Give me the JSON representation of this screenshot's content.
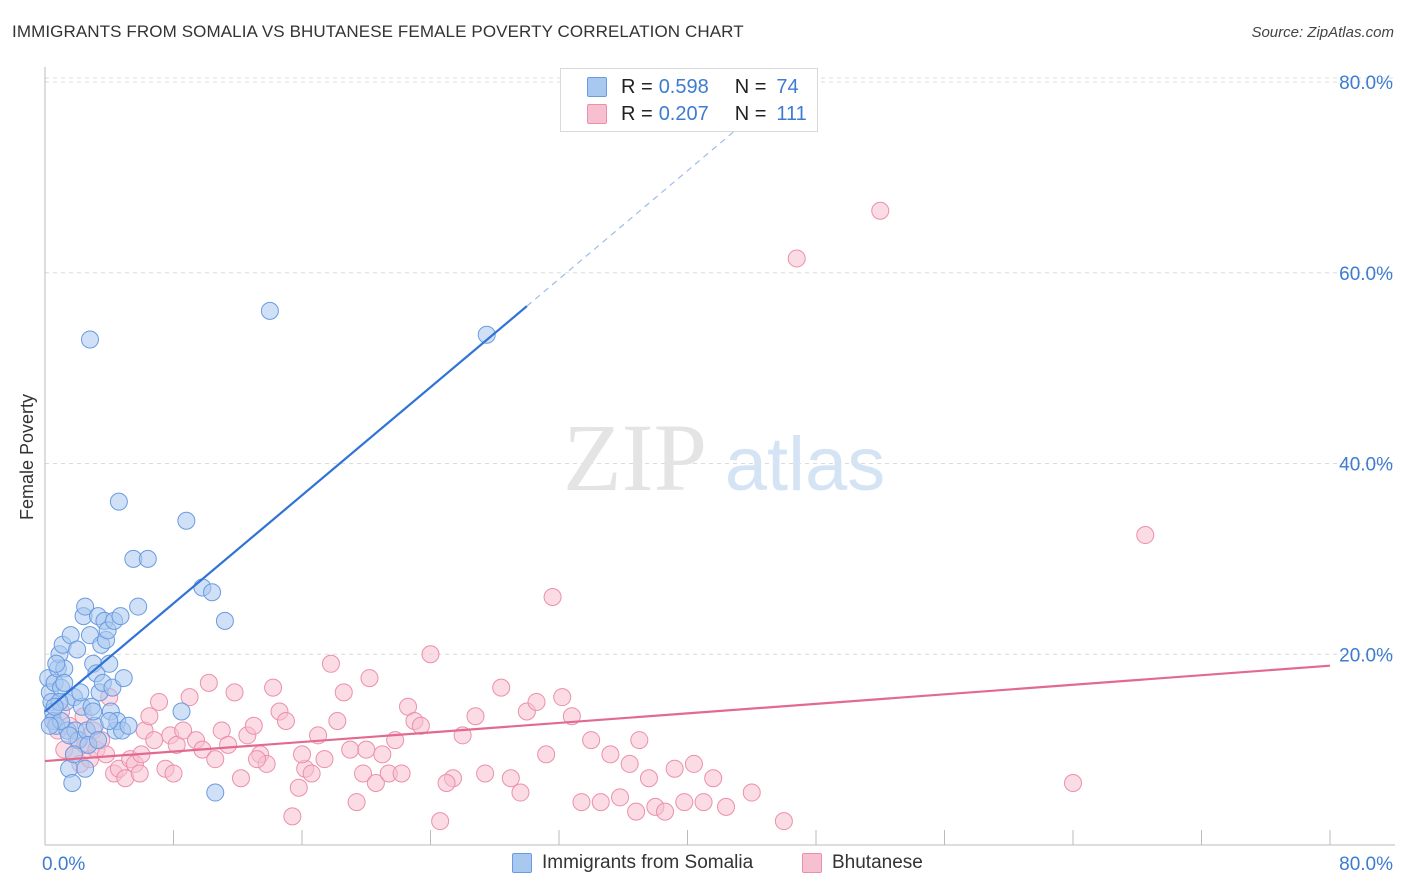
{
  "header": {
    "title": "IMMIGRANTS FROM SOMALIA VS BHUTANESE FEMALE POVERTY CORRELATION CHART",
    "source": "Source: ZipAtlas.com"
  },
  "watermark": {
    "zip": "ZIP",
    "atlas": "atlas"
  },
  "legend": {
    "rows": [
      {
        "r_label": "R =",
        "r_value": "0.598",
        "n_label": "N =",
        "n_value": "74",
        "color": "#a9c8f0",
        "border": "#6a9be0"
      },
      {
        "r_label": "R =",
        "r_value": "0.207",
        "n_label": "N =",
        "n_value": "111",
        "color": "#f7c0d0",
        "border": "#ec8fab"
      }
    ]
  },
  "bottom_legend": [
    {
      "label": "Immigrants from Somalia",
      "color": "#a9c8f0",
      "border": "#6a9be0"
    },
    {
      "label": "Bhutanese",
      "color": "#f7c0d0",
      "border": "#ec8fab"
    }
  ],
  "chart_data": {
    "type": "scatter",
    "title": "IMMIGRANTS FROM SOMALIA VS BHUTANESE FEMALE POVERTY CORRELATION CHART",
    "xlabel": "",
    "ylabel": "Female Poverty",
    "xlim": [
      0,
      80
    ],
    "ylim": [
      0,
      80
    ],
    "x_tick_labels": [
      "0.0%",
      "80.0%"
    ],
    "y_tick_labels": [
      "20.0%",
      "40.0%",
      "60.0%",
      "80.0%"
    ],
    "y_ticks": [
      20,
      40,
      60,
      80
    ],
    "grid": true,
    "series": [
      {
        "name": "Immigrants from Somalia",
        "color": "#a9c8f0",
        "stroke": "#6a9be0",
        "line_color": "#2f73d6",
        "trend": {
          "x0": 0,
          "y0": 14.0,
          "x1": 30,
          "y1": 56.5,
          "dash_to_x": 45,
          "dash_to_y": 77.8
        },
        "points": [
          [
            0.2,
            17.5
          ],
          [
            0.3,
            16.0
          ],
          [
            0.4,
            15.0
          ],
          [
            0.5,
            14.0
          ],
          [
            0.5,
            13.0
          ],
          [
            0.6,
            17.0
          ],
          [
            0.7,
            12.5
          ],
          [
            0.8,
            18.5
          ],
          [
            0.9,
            20.0
          ],
          [
            1.0,
            16.5
          ],
          [
            1.1,
            21.0
          ],
          [
            1.2,
            18.5
          ],
          [
            1.3,
            15.0
          ],
          [
            1.4,
            12.0
          ],
          [
            1.5,
            8.0
          ],
          [
            1.6,
            22.0
          ],
          [
            1.7,
            6.5
          ],
          [
            1.8,
            15.5
          ],
          [
            1.9,
            12.0
          ],
          [
            2.0,
            20.5
          ],
          [
            2.1,
            11.0
          ],
          [
            2.3,
            14.5
          ],
          [
            2.4,
            24.0
          ],
          [
            2.5,
            25.0
          ],
          [
            2.6,
            12.0
          ],
          [
            2.7,
            10.5
          ],
          [
            2.8,
            22.0
          ],
          [
            2.9,
            14.5
          ],
          [
            3.0,
            19.0
          ],
          [
            3.1,
            12.5
          ],
          [
            3.2,
            18.0
          ],
          [
            3.3,
            24.0
          ],
          [
            3.4,
            16.0
          ],
          [
            3.5,
            21.0
          ],
          [
            3.6,
            17.0
          ],
          [
            3.7,
            23.5
          ],
          [
            3.8,
            21.5
          ],
          [
            3.9,
            22.5
          ],
          [
            4.0,
            19.0
          ],
          [
            4.1,
            14.0
          ],
          [
            4.2,
            16.5
          ],
          [
            4.3,
            23.5
          ],
          [
            4.4,
            12.0
          ],
          [
            4.5,
            13.0
          ],
          [
            4.6,
            36.0
          ],
          [
            4.7,
            24.0
          ],
          [
            4.8,
            12.0
          ],
          [
            4.9,
            17.5
          ],
          [
            5.2,
            12.5
          ],
          [
            5.5,
            30.0
          ],
          [
            5.8,
            25.0
          ],
          [
            6.4,
            30.0
          ],
          [
            2.8,
            53.0
          ],
          [
            8.5,
            14.0
          ],
          [
            8.8,
            34.0
          ],
          [
            9.8,
            27.0
          ],
          [
            10.4,
            26.5
          ],
          [
            11.2,
            23.5
          ],
          [
            14.0,
            56.0
          ],
          [
            27.5,
            53.5
          ],
          [
            10.6,
            5.5
          ],
          [
            1.0,
            13.0
          ],
          [
            0.9,
            15.0
          ],
          [
            1.5,
            11.5
          ],
          [
            2.2,
            16.0
          ],
          [
            0.6,
            14.5
          ],
          [
            0.3,
            12.5
          ],
          [
            1.2,
            17.0
          ],
          [
            3.0,
            14.0
          ],
          [
            4.0,
            13.0
          ],
          [
            1.8,
            9.5
          ],
          [
            2.5,
            8.0
          ],
          [
            0.7,
            19.0
          ],
          [
            3.3,
            11.0
          ]
        ]
      },
      {
        "name": "Bhutanese",
        "color": "#f7c0d0",
        "stroke": "#ec8fab",
        "line_color": "#e26a92",
        "trend": {
          "x0": 0,
          "y0": 8.8,
          "x1": 80,
          "y1": 18.8
        },
        "points": [
          [
            0.5,
            13.0
          ],
          [
            0.8,
            12.0
          ],
          [
            1.0,
            14.0
          ],
          [
            1.2,
            10.0
          ],
          [
            1.5,
            12.5
          ],
          [
            1.8,
            9.5
          ],
          [
            2.0,
            11.0
          ],
          [
            2.2,
            8.5
          ],
          [
            2.5,
            10.5
          ],
          [
            2.8,
            9.0
          ],
          [
            3.0,
            12.0
          ],
          [
            3.2,
            10.0
          ],
          [
            3.5,
            11.0
          ],
          [
            3.8,
            9.5
          ],
          [
            4.0,
            15.5
          ],
          [
            4.3,
            7.5
          ],
          [
            4.6,
            8.0
          ],
          [
            5.0,
            7.0
          ],
          [
            5.3,
            9.0
          ],
          [
            5.6,
            8.5
          ],
          [
            5.9,
            7.5
          ],
          [
            6.2,
            12.0
          ],
          [
            6.5,
            13.5
          ],
          [
            6.8,
            11.0
          ],
          [
            7.1,
            15.0
          ],
          [
            7.5,
            8.0
          ],
          [
            7.8,
            11.5
          ],
          [
            8.2,
            10.5
          ],
          [
            8.6,
            12.0
          ],
          [
            9.0,
            15.5
          ],
          [
            9.4,
            11.0
          ],
          [
            9.8,
            10.0
          ],
          [
            10.2,
            17.0
          ],
          [
            10.6,
            9.0
          ],
          [
            11.0,
            12.0
          ],
          [
            11.4,
            10.5
          ],
          [
            11.8,
            16.0
          ],
          [
            12.2,
            7.0
          ],
          [
            12.6,
            11.5
          ],
          [
            13.0,
            12.5
          ],
          [
            13.4,
            9.5
          ],
          [
            13.8,
            8.5
          ],
          [
            14.2,
            16.5
          ],
          [
            14.6,
            14.0
          ],
          [
            15.0,
            13.0
          ],
          [
            15.4,
            3.0
          ],
          [
            15.8,
            6.0
          ],
          [
            16.2,
            8.0
          ],
          [
            16.6,
            7.5
          ],
          [
            17.0,
            11.5
          ],
          [
            17.4,
            9.0
          ],
          [
            17.8,
            19.0
          ],
          [
            18.2,
            13.0
          ],
          [
            18.6,
            16.0
          ],
          [
            19.0,
            10.0
          ],
          [
            19.4,
            4.5
          ],
          [
            19.8,
            7.5
          ],
          [
            20.2,
            17.5
          ],
          [
            20.6,
            6.5
          ],
          [
            21.0,
            9.5
          ],
          [
            21.4,
            7.5
          ],
          [
            21.8,
            11.0
          ],
          [
            22.2,
            7.5
          ],
          [
            22.6,
            14.5
          ],
          [
            23.0,
            13.0
          ],
          [
            23.4,
            12.5
          ],
          [
            24.0,
            20.0
          ],
          [
            24.6,
            2.5
          ],
          [
            25.4,
            7.0
          ],
          [
            26.0,
            11.5
          ],
          [
            26.8,
            13.5
          ],
          [
            27.4,
            7.5
          ],
          [
            28.4,
            16.5
          ],
          [
            29.0,
            7.0
          ],
          [
            30.0,
            14.0
          ],
          [
            30.6,
            15.0
          ],
          [
            31.2,
            9.5
          ],
          [
            31.6,
            26.0
          ],
          [
            32.2,
            15.5
          ],
          [
            32.8,
            13.5
          ],
          [
            33.4,
            4.5
          ],
          [
            34.0,
            11.0
          ],
          [
            34.6,
            4.5
          ],
          [
            35.2,
            9.5
          ],
          [
            35.8,
            5.0
          ],
          [
            36.4,
            8.5
          ],
          [
            37.0,
            11.0
          ],
          [
            37.6,
            7.0
          ],
          [
            38.0,
            4.0
          ],
          [
            38.6,
            3.5
          ],
          [
            39.2,
            8.0
          ],
          [
            39.8,
            4.5
          ],
          [
            40.4,
            8.5
          ],
          [
            41.0,
            4.5
          ],
          [
            41.6,
            7.0
          ],
          [
            42.4,
            4.0
          ],
          [
            44.0,
            5.5
          ],
          [
            46.0,
            2.5
          ],
          [
            46.8,
            61.5
          ],
          [
            52.0,
            66.5
          ],
          [
            64.0,
            6.5
          ],
          [
            68.5,
            32.5
          ],
          [
            2.4,
            13.5
          ],
          [
            6.0,
            9.5
          ],
          [
            8.0,
            7.5
          ],
          [
            13.2,
            9.0
          ],
          [
            16.0,
            9.5
          ],
          [
            20.0,
            10.0
          ],
          [
            25.0,
            6.5
          ],
          [
            29.6,
            5.5
          ],
          [
            36.8,
            3.5
          ]
        ]
      }
    ]
  }
}
